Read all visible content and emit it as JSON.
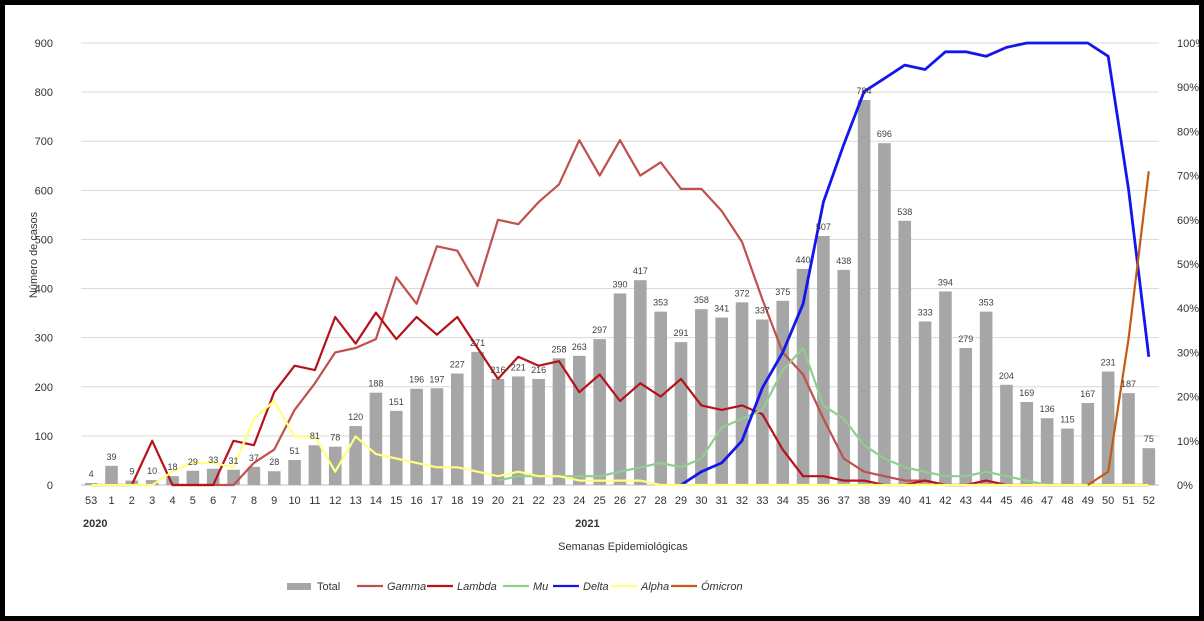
{
  "chart_data": {
    "type": "bar+line",
    "title": "",
    "xlabel": "Semanas Epidemiológicas",
    "ylabel": "Número de casos",
    "ylim": [
      0,
      900
    ],
    "y2lim": [
      0,
      100
    ],
    "y_ticks": [
      "0",
      "100",
      "200",
      "300",
      "400",
      "500",
      "600",
      "700",
      "800",
      "900"
    ],
    "y2_ticks": [
      "0%",
      "10%",
      "20%",
      "30%",
      "40%",
      "50%",
      "60%",
      "70%",
      "80%",
      "90%",
      "100%"
    ],
    "grid": true,
    "legend_position": "bottom",
    "year_labels": [
      {
        "label": "2020",
        "at_index": 0
      },
      {
        "label": "2021",
        "at_index": 24
      }
    ],
    "categories": [
      "53",
      "1",
      "2",
      "3",
      "4",
      "5",
      "6",
      "7",
      "8",
      "9",
      "10",
      "11",
      "12",
      "13",
      "14",
      "15",
      "16",
      "17",
      "18",
      "19",
      "20",
      "21",
      "22",
      "23",
      "24",
      "25",
      "26",
      "27",
      "28",
      "29",
      "30",
      "31",
      "32",
      "33",
      "34",
      "35",
      "36",
      "37",
      "38",
      "39",
      "40",
      "41",
      "42",
      "43",
      "44",
      "45",
      "46",
      "47",
      "48",
      "49",
      "50",
      "51",
      "52"
    ],
    "bars": {
      "name": "Total",
      "color": "#a6a6a6",
      "values": [
        4,
        39,
        9,
        10,
        18,
        29,
        33,
        31,
        37,
        28,
        51,
        81,
        78,
        120,
        188,
        151,
        196,
        197,
        227,
        271,
        216,
        221,
        216,
        258,
        263,
        297,
        390,
        417,
        353,
        291,
        358,
        341,
        372,
        337,
        375,
        440,
        507,
        438,
        784,
        696,
        538,
        333,
        394,
        279,
        353,
        204,
        169,
        136,
        115,
        167,
        231,
        187,
        75
      ],
      "labels": [
        "4",
        "39",
        "9",
        "10",
        "18",
        "29",
        "33",
        "31",
        "37",
        "28",
        "51",
        "81",
        "78",
        "120",
        "188",
        "151",
        "196",
        "197",
        "227",
        "271",
        "216",
        "221",
        "216",
        "258",
        "263",
        "297",
        "390",
        "417",
        "353",
        "291",
        "358",
        "341",
        "372",
        "337",
        "375",
        "440",
        "507",
        "438",
        "784",
        "696",
        "538",
        "333",
        "394",
        "279",
        "353",
        "204",
        "169",
        "136",
        "115",
        "167",
        "231",
        "187",
        "75"
      ]
    },
    "series": [
      {
        "name": "Gamma",
        "color": "#c0504d",
        "italic": true,
        "values": [
          null,
          null,
          null,
          null,
          0,
          0,
          0,
          0,
          5,
          8,
          17,
          23,
          30,
          31,
          33,
          47,
          41,
          54,
          53,
          45,
          60,
          59,
          64,
          68,
          78,
          70,
          78,
          70,
          73,
          67,
          67,
          62,
          55,
          42,
          30,
          25,
          15,
          6,
          3,
          2,
          1,
          1,
          0,
          0,
          0,
          0,
          0,
          0,
          0,
          0,
          0,
          0,
          0
        ]
      },
      {
        "name": "Lambda",
        "color": "#b5121b",
        "italic": true,
        "values": [
          0,
          0,
          0,
          10,
          0,
          0,
          0,
          10,
          9,
          21,
          27,
          26,
          38,
          32,
          39,
          33,
          38,
          34,
          38,
          31,
          24,
          29,
          27,
          28,
          21,
          25,
          19,
          23,
          20,
          24,
          18,
          17,
          18,
          16,
          8,
          2,
          2,
          1,
          1,
          0,
          0,
          1,
          0,
          0,
          1,
          0,
          0,
          0,
          0,
          0,
          0,
          0,
          0
        ]
      },
      {
        "name": "Mu",
        "color": "#8fce8f",
        "italic": true,
        "values": [
          null,
          null,
          null,
          null,
          null,
          null,
          null,
          null,
          null,
          null,
          null,
          null,
          null,
          null,
          null,
          null,
          null,
          null,
          null,
          null,
          1,
          2,
          2,
          2,
          2,
          2,
          3,
          4,
          5,
          4,
          6,
          13,
          15,
          17,
          26,
          31,
          18,
          15,
          9,
          6,
          4,
          3,
          2,
          2,
          3,
          2,
          1,
          0,
          0,
          0,
          0,
          0,
          0
        ]
      },
      {
        "name": "Delta",
        "color": "#1515ee",
        "italic": true,
        "values": [
          null,
          null,
          null,
          null,
          null,
          null,
          null,
          null,
          null,
          null,
          null,
          null,
          null,
          null,
          null,
          null,
          null,
          null,
          null,
          null,
          null,
          null,
          null,
          null,
          null,
          null,
          null,
          null,
          null,
          0,
          3,
          5,
          10,
          22,
          30,
          41,
          64,
          77,
          89,
          92,
          95,
          94,
          98,
          98,
          97,
          99,
          100,
          100,
          100,
          100,
          97,
          67,
          29
        ]
      },
      {
        "name": "Alpha",
        "color": "#ffff80",
        "italic": true,
        "values": [
          0,
          0,
          0,
          0,
          3,
          5,
          5,
          4,
          15,
          19,
          11,
          11,
          3,
          11,
          7,
          6,
          5,
          4,
          4,
          3,
          2,
          3,
          2,
          2,
          1,
          1,
          1,
          1,
          0,
          0,
          0,
          0,
          0,
          0,
          0,
          0,
          0,
          0,
          0,
          0,
          0,
          0,
          0,
          0,
          0,
          0,
          0,
          0,
          0,
          0,
          0,
          0,
          0
        ]
      },
      {
        "name": "Ómicron",
        "color": "#c55a11",
        "italic": true,
        "values": [
          null,
          null,
          null,
          null,
          null,
          null,
          null,
          null,
          null,
          null,
          null,
          null,
          null,
          null,
          null,
          null,
          null,
          null,
          null,
          null,
          null,
          null,
          null,
          null,
          null,
          null,
          null,
          null,
          null,
          null,
          null,
          null,
          null,
          null,
          null,
          null,
          null,
          null,
          null,
          null,
          null,
          null,
          null,
          null,
          null,
          null,
          null,
          null,
          null,
          0,
          3,
          33,
          71
        ]
      }
    ]
  }
}
